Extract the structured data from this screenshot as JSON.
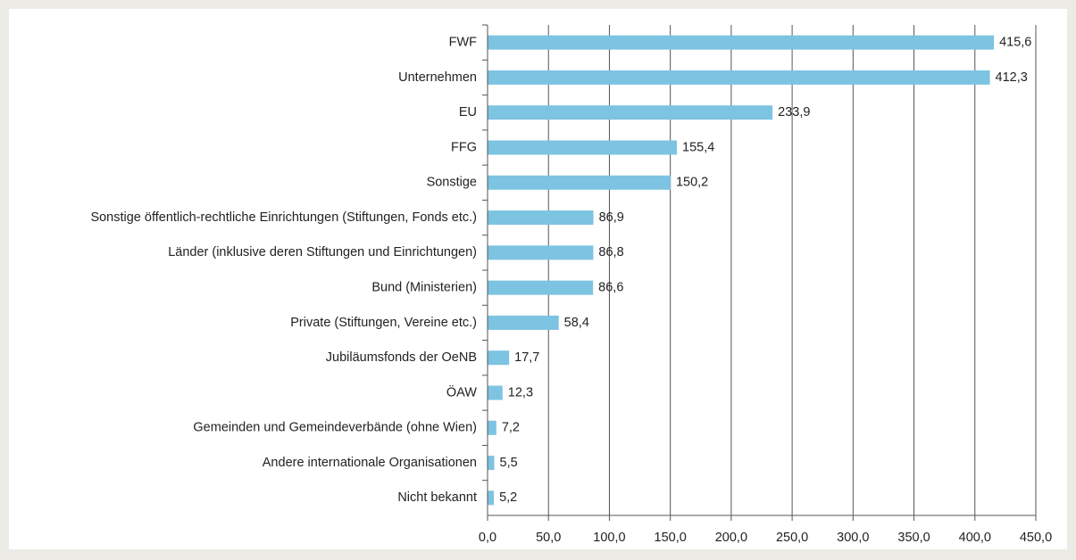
{
  "chart_data": {
    "type": "barh",
    "categories": [
      "FWF",
      "Unternehmen",
      "EU",
      "FFG",
      "Sonstige",
      "Sonstige öffentlich-rechtliche Einrichtungen (Stiftungen, Fonds etc.)",
      "Länder (inklusive deren Stiftungen und Einrichtungen)",
      "Bund (Ministerien)",
      "Private (Stiftungen, Vereine etc.)",
      "Jubiläumsfonds der OeNB",
      "ÖAW",
      "Gemeinden und Gemeindeverbände (ohne Wien)",
      "Andere internationale Organisationen",
      "Nicht bekannt"
    ],
    "values": [
      415.6,
      412.3,
      233.9,
      155.4,
      150.2,
      86.9,
      86.8,
      86.6,
      58.4,
      17.7,
      12.3,
      7.2,
      5.5,
      5.2
    ],
    "value_labels": [
      "415,6",
      "412,3",
      "233,9",
      "155,4",
      "150,2",
      "86,9",
      "86,8",
      "86,6",
      "58,4",
      "17,7",
      "12,3",
      "7,2",
      "5,5",
      "5,2"
    ],
    "color": "#7dc3e2",
    "xlim": [
      0,
      450
    ],
    "xticks": [
      {
        "value": 0,
        "label": "0,0"
      },
      {
        "value": 50,
        "label": "50,0"
      },
      {
        "value": 100,
        "label": "100,0"
      },
      {
        "value": 150,
        "label": "150,0"
      },
      {
        "value": 200,
        "label": "200,0"
      },
      {
        "value": 250,
        "label": "250,0"
      },
      {
        "value": 300,
        "label": "300,0"
      },
      {
        "value": 350,
        "label": "350,0"
      },
      {
        "value": 400,
        "label": "400,0"
      },
      {
        "value": 450,
        "label": "450,0"
      }
    ],
    "grid": true
  }
}
